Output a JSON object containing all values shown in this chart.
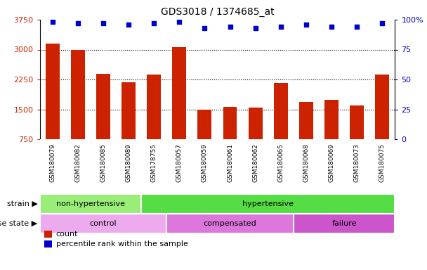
{
  "title": "GDS3018 / 1374685_at",
  "samples": [
    "GSM180079",
    "GSM180082",
    "GSM180085",
    "GSM180089",
    "GSM178755",
    "GSM180057",
    "GSM180059",
    "GSM180061",
    "GSM180062",
    "GSM180065",
    "GSM180068",
    "GSM180069",
    "GSM180073",
    "GSM180075"
  ],
  "counts": [
    3150,
    3000,
    2400,
    2180,
    2380,
    3060,
    1490,
    1560,
    1545,
    2160,
    1680,
    1730,
    1590,
    2380
  ],
  "percentiles": [
    98,
    97,
    97,
    96,
    97,
    98,
    93,
    94,
    93,
    94,
    96,
    94,
    94,
    97
  ],
  "bar_color": "#cc2200",
  "dot_color": "#0000cc",
  "ylim_left": [
    750,
    3750
  ],
  "ylim_right": [
    0,
    100
  ],
  "yticks_left": [
    750,
    1500,
    2250,
    3000,
    3750
  ],
  "yticks_right": [
    0,
    25,
    50,
    75,
    100
  ],
  "strain_groups": [
    {
      "label": "non-hypertensive",
      "start": 0,
      "end": 4,
      "color": "#99ee77"
    },
    {
      "label": "hypertensive",
      "start": 4,
      "end": 14,
      "color": "#55dd44"
    }
  ],
  "disease_groups": [
    {
      "label": "control",
      "start": 0,
      "end": 5,
      "color": "#eeaaee"
    },
    {
      "label": "compensated",
      "start": 5,
      "end": 10,
      "color": "#dd77dd"
    },
    {
      "label": "failure",
      "start": 10,
      "end": 14,
      "color": "#cc55cc"
    }
  ],
  "legend_count_label": "count",
  "legend_percentile_label": "percentile rank within the sample",
  "strain_label": "strain",
  "disease_label": "disease state",
  "xlabel_bg_color": "#cccccc",
  "grid_color": "#000000"
}
